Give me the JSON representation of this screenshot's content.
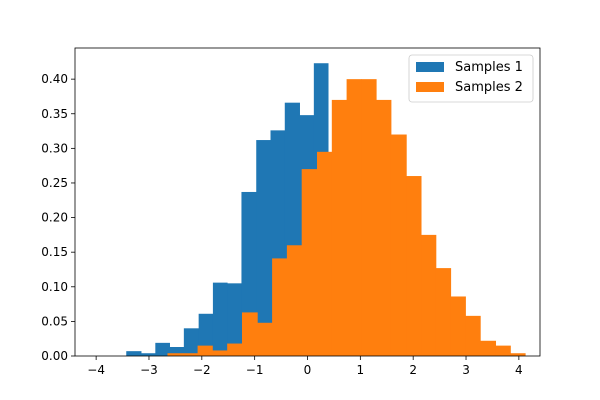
{
  "chart_data": {
    "type": "bar",
    "subtype": "overlaid-histogram",
    "title": "",
    "xlabel": "",
    "ylabel": "",
    "xlim": [
      -4.4,
      4.4
    ],
    "ylim": [
      0,
      0.445
    ],
    "x_ticks": [
      -4,
      -3,
      -2,
      -1,
      0,
      1,
      2,
      3,
      4
    ],
    "x_tick_labels": [
      "−4",
      "−3",
      "−2",
      "−1",
      "0",
      "1",
      "2",
      "3",
      "4"
    ],
    "y_ticks": [
      0.0,
      0.05,
      0.1,
      0.15,
      0.2,
      0.25,
      0.3,
      0.35,
      0.4
    ],
    "y_tick_labels": [
      "0.00",
      "0.05",
      "0.10",
      "0.15",
      "0.20",
      "0.25",
      "0.30",
      "0.35",
      "0.40"
    ],
    "grid": false,
    "legend_position": "top-right",
    "series": [
      {
        "name": "Samples 1",
        "color": "#1f77b4",
        "bin_edges": [
          -3.43,
          -3.15,
          -2.88,
          -2.61,
          -2.34,
          -2.06,
          -1.79,
          -1.52,
          -1.25,
          -0.97,
          -0.7,
          -0.43,
          -0.15,
          0.12,
          0.39
        ],
        "values": [
          0.007,
          0.004,
          0.019,
          0.013,
          0.04,
          0.061,
          0.106,
          0.105,
          0.237,
          0.312,
          0.326,
          0.366,
          0.348,
          0.423
        ]
      },
      {
        "name": "Samples 2",
        "color": "#ff7f0e",
        "bin_edges": [
          -2.65,
          -2.36,
          -2.08,
          -1.8,
          -1.52,
          -1.24,
          -0.95,
          -0.67,
          -0.39,
          -0.11,
          0.18,
          0.46,
          0.74,
          1.02,
          1.3,
          1.58,
          1.87,
          2.15,
          2.43,
          2.71,
          2.99,
          3.27,
          3.56,
          3.84,
          4.12
        ],
        "values": [
          0.004,
          0.004,
          0.015,
          0.008,
          0.018,
          0.063,
          0.048,
          0.141,
          0.16,
          0.27,
          0.295,
          0.37,
          0.4,
          0.4,
          0.37,
          0.32,
          0.26,
          0.175,
          0.127,
          0.086,
          0.058,
          0.022,
          0.015,
          0.004
        ]
      }
    ]
  }
}
